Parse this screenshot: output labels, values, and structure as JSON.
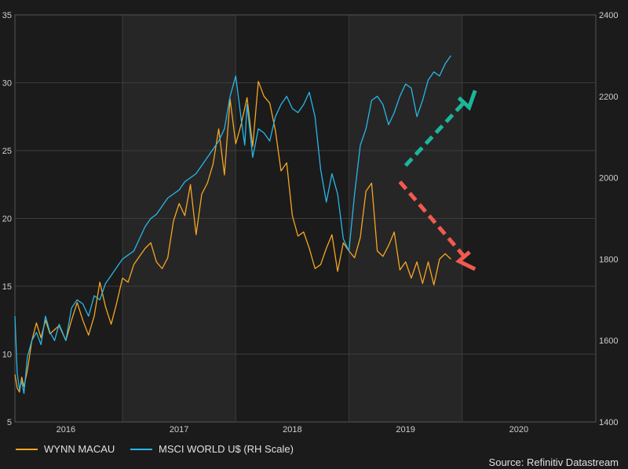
{
  "chart_data": {
    "type": "line",
    "title": "",
    "xlabel": "",
    "ylabel_left": "",
    "ylabel_right": "",
    "x_range": [
      2015.55,
      2020.68
    ],
    "x_ticks": [
      2016,
      2017,
      2018,
      2019,
      2020
    ],
    "x_tick_labels": [
      "2016",
      "2017",
      "2018",
      "2019",
      "2020"
    ],
    "ylim_left": [
      5,
      35
    ],
    "y_ticks_left": [
      5,
      10,
      15,
      20,
      25,
      30,
      35
    ],
    "ylim_right": [
      1400,
      2400
    ],
    "y_ticks_right": [
      1400,
      1600,
      1800,
      2000,
      2200,
      2400
    ],
    "shaded_year_bands": [
      [
        2016.5,
        2017.5
      ],
      [
        2018.5,
        2019.5
      ]
    ],
    "legend_position": "bottom-left",
    "source": "Source: Refinitiv Datastream",
    "series": [
      {
        "name": "WYNN MACAU",
        "axis": "left",
        "color": "#f5a623",
        "x": [
          2015.55,
          2015.57,
          2015.59,
          2015.61,
          2015.63,
          2015.66,
          2015.7,
          2015.74,
          2015.78,
          2015.82,
          2015.86,
          2015.9,
          2015.94,
          2016.0,
          2016.05,
          2016.1,
          2016.15,
          2016.2,
          2016.25,
          2016.3,
          2016.35,
          2016.4,
          2016.45,
          2016.5,
          2016.55,
          2016.6,
          2016.65,
          2016.7,
          2016.75,
          2016.8,
          2016.85,
          2016.9,
          2016.95,
          2017.0,
          2017.05,
          2017.1,
          2017.15,
          2017.2,
          2017.25,
          2017.3,
          2017.35,
          2017.4,
          2017.45,
          2017.5,
          2017.55,
          2017.6,
          2017.65,
          2017.7,
          2017.75,
          2017.8,
          2017.85,
          2017.9,
          2017.95,
          2018.0,
          2018.05,
          2018.1,
          2018.15,
          2018.2,
          2018.25,
          2018.3,
          2018.35,
          2018.4,
          2018.45,
          2018.5,
          2018.55,
          2018.6,
          2018.65,
          2018.7,
          2018.75,
          2018.8,
          2018.85,
          2018.9,
          2018.95,
          2019.0,
          2019.05,
          2019.1,
          2019.15,
          2019.2,
          2019.25,
          2019.3,
          2019.35,
          2019.4
        ],
        "values": [
          8.5,
          7.5,
          7.2,
          8.3,
          7.6,
          8.8,
          11.0,
          12.3,
          11.2,
          12.5,
          11.5,
          11.8,
          12.1,
          11.0,
          12.5,
          13.8,
          12.5,
          11.4,
          12.8,
          15.3,
          13.5,
          12.2,
          13.8,
          15.6,
          15.3,
          16.6,
          17.2,
          17.8,
          18.2,
          16.8,
          16.3,
          17.1,
          19.8,
          21.1,
          20.2,
          22.5,
          18.8,
          21.8,
          22.6,
          24.0,
          26.6,
          23.2,
          28.8,
          25.5,
          27.0,
          28.9,
          25.3,
          30.1,
          29.0,
          28.5,
          26.5,
          23.5,
          24.1,
          20.2,
          18.7,
          19.0,
          17.8,
          16.3,
          16.6,
          17.8,
          18.8,
          16.1,
          18.2,
          17.6,
          17.1,
          18.6,
          22.0,
          22.6,
          17.6,
          17.2,
          18.0,
          19.0,
          16.2,
          16.8,
          15.6,
          16.8,
          15.2,
          16.8,
          15.1,
          17.0,
          17.4,
          17.0
        ],
        "line_width": 1.3
      },
      {
        "name": "MSCI WORLD U$ (RH Scale)",
        "axis": "right",
        "color": "#29b6e8",
        "x": [
          2015.55,
          2015.57,
          2015.59,
          2015.61,
          2015.63,
          2015.66,
          2015.7,
          2015.74,
          2015.78,
          2015.82,
          2015.86,
          2015.9,
          2015.94,
          2016.0,
          2016.05,
          2016.1,
          2016.15,
          2016.2,
          2016.25,
          2016.3,
          2016.35,
          2016.4,
          2016.45,
          2016.5,
          2016.55,
          2016.6,
          2016.65,
          2016.7,
          2016.75,
          2016.8,
          2016.85,
          2016.9,
          2016.95,
          2017.0,
          2017.05,
          2017.1,
          2017.15,
          2017.2,
          2017.25,
          2017.3,
          2017.35,
          2017.4,
          2017.45,
          2017.5,
          2017.55,
          2017.58,
          2017.6,
          2017.65,
          2017.7,
          2017.75,
          2017.8,
          2017.85,
          2017.9,
          2017.95,
          2018.0,
          2018.05,
          2018.1,
          2018.15,
          2018.2,
          2018.25,
          2018.3,
          2018.35,
          2018.4,
          2018.45,
          2018.5,
          2018.55,
          2018.6,
          2018.65,
          2018.7,
          2018.75,
          2018.8,
          2018.85,
          2018.9,
          2018.95,
          2019.0,
          2019.05,
          2019.1,
          2019.15,
          2019.2,
          2019.25,
          2019.3,
          2019.35,
          2019.4
        ],
        "values": [
          1660,
          1520,
          1480,
          1500,
          1470,
          1560,
          1600,
          1620,
          1590,
          1660,
          1620,
          1600,
          1640,
          1600,
          1680,
          1700,
          1690,
          1660,
          1710,
          1700,
          1740,
          1760,
          1780,
          1800,
          1810,
          1820,
          1850,
          1880,
          1900,
          1910,
          1930,
          1950,
          1960,
          1970,
          1990,
          2000,
          2010,
          2030,
          2050,
          2070,
          2090,
          2120,
          2200,
          2250,
          2140,
          2080,
          2180,
          2050,
          2120,
          2110,
          2090,
          2150,
          2180,
          2200,
          2170,
          2160,
          2180,
          2210,
          2150,
          2020,
          1940,
          2010,
          1960,
          1850,
          1820,
          1960,
          2080,
          2120,
          2190,
          2200,
          2180,
          2130,
          2160,
          2200,
          2230,
          2220,
          2150,
          2190,
          2240,
          2260,
          2250,
          2280,
          2300
        ],
        "line_width": 1.3
      }
    ],
    "annotations": [
      {
        "type": "arrow",
        "direction": "up",
        "color": "#1db59a",
        "from": [
          2019.0,
          2030
        ],
        "to": [
          2019.6,
          2210
        ]
      },
      {
        "type": "arrow",
        "direction": "down",
        "color": "#f15a50",
        "from": [
          2018.95,
          1990
        ],
        "to": [
          2019.6,
          1780
        ]
      }
    ]
  }
}
